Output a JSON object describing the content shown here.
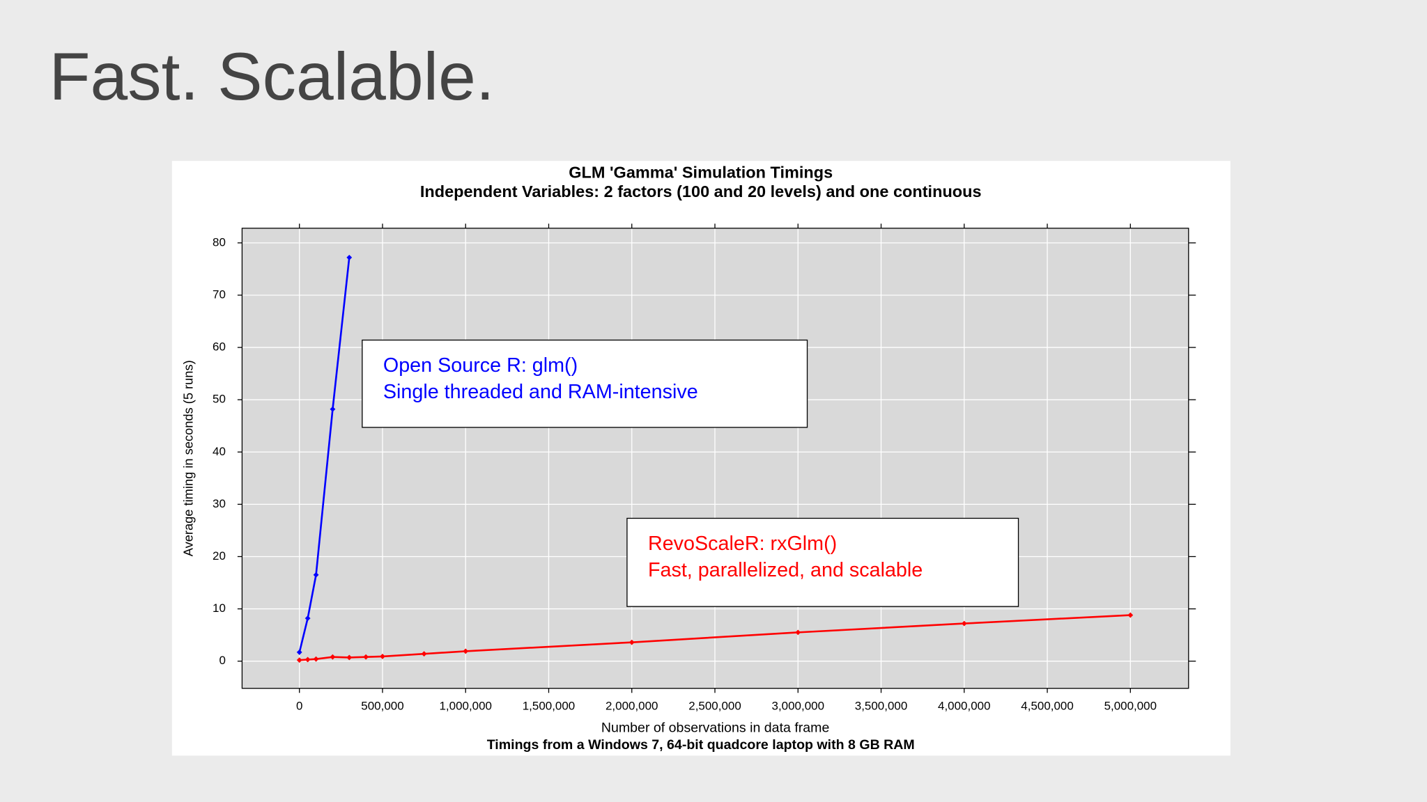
{
  "slide_title": "Fast.  Scalable.",
  "chart_data": {
    "type": "line",
    "title": "GLM 'Gamma' Simulation Timings",
    "subtitle": "Independent Variables: 2 factors (100 and 20 levels) and one continuous",
    "x_label": "Number of observations in data frame",
    "y_label": "Average timing in seconds (5 runs)",
    "caption": "Timings from a Windows 7, 64-bit quadcore laptop with 8 GB RAM",
    "xlim": [
      -345000,
      5350000
    ],
    "ylim": [
      -5.2,
      82.8
    ],
    "xticks": [
      0,
      {
        "value": 500000,
        "label": "500,000"
      },
      {
        "value": 1000000,
        "label": "1,000,000"
      },
      {
        "value": 1500000,
        "label": "1,500,000"
      },
      {
        "value": 2000000,
        "label": "2,000,000"
      },
      {
        "value": 2500000,
        "label": "2,500,000"
      },
      {
        "value": 3000000,
        "label": "3,000,000"
      },
      {
        "value": 3500000,
        "label": "3,500,000"
      },
      {
        "value": 4000000,
        "label": "4,000,000"
      },
      {
        "value": 4500000,
        "label": "4,500,000"
      },
      {
        "value": 5000000,
        "label": "5,000,000"
      }
    ],
    "yticks": [
      0,
      10,
      20,
      30,
      40,
      50,
      60,
      70,
      80
    ],
    "grid": true,
    "series": [
      {
        "name": "Open Source R: glm()",
        "color": "#0000ff",
        "x": [
          0,
          50000,
          100000,
          200000,
          300000
        ],
        "values": [
          1.7,
          8.2,
          16.5,
          48.2,
          77.2
        ]
      },
      {
        "name": "RevoScaleR: rxGlm()",
        "color": "#ff0000",
        "x": [
          0,
          50000,
          100000,
          200000,
          300000,
          400000,
          500000,
          750000,
          1000000,
          2000000,
          3000000,
          4000000,
          5000000
        ],
        "values": [
          0.2,
          0.3,
          0.4,
          0.8,
          0.7,
          0.8,
          0.9,
          1.4,
          1.9,
          3.6,
          5.5,
          7.2,
          8.8
        ]
      }
    ],
    "annotations": [
      {
        "lines": [
          "Open Source R: glm()",
          "Single threaded and RAM-intensive"
        ],
        "color": "#0000ff"
      },
      {
        "lines": [
          "RevoScaleR: rxGlm()",
          "Fast, parallelized, and scalable"
        ],
        "color": "#ff0000"
      }
    ]
  }
}
